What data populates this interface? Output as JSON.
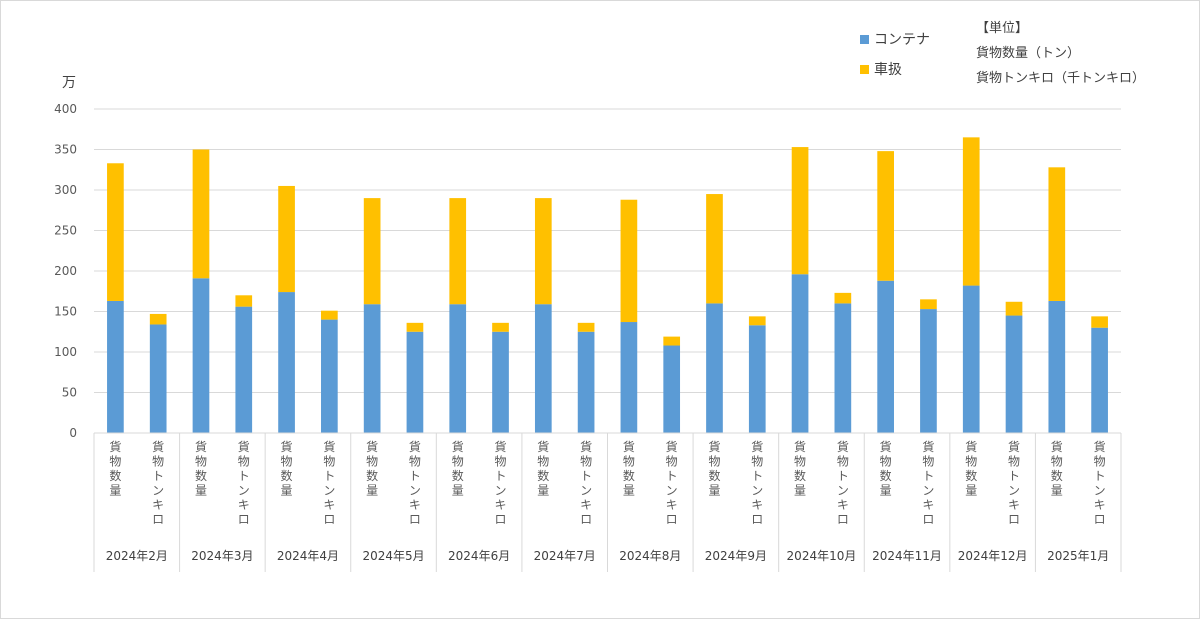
{
  "chart_data": {
    "type": "bar",
    "stacked": true,
    "ylabel": "万",
    "ylim": [
      0,
      400
    ],
    "yticks": [
      0,
      50,
      100,
      150,
      200,
      250,
      300,
      350,
      400
    ],
    "grid": true,
    "legend_position": "top-right",
    "groups": [
      "2024年2月",
      "2024年3月",
      "2024年4月",
      "2024年5月",
      "2024年6月",
      "2024年7月",
      "2024年8月",
      "2024年9月",
      "2024年10月",
      "2024年11月",
      "2024年12月",
      "2025年1月"
    ],
    "subcategories": [
      "貨物数量",
      "貨物トンキロ"
    ],
    "series": [
      {
        "name": "コンテナ",
        "color": "#5b9bd5",
        "values": [
          163,
          134,
          191,
          156,
          174,
          140,
          159,
          125,
          159,
          125,
          159,
          125,
          137,
          108,
          160,
          133,
          196,
          160,
          188,
          153,
          182,
          145,
          163,
          130
        ]
      },
      {
        "name": "車扱",
        "color": "#ffc000",
        "values": [
          170,
          13,
          159,
          14,
          131,
          11,
          131,
          11,
          131,
          11,
          131,
          11,
          151,
          11,
          135,
          11,
          157,
          13,
          160,
          12,
          183,
          17,
          165,
          14
        ]
      }
    ],
    "unit_note": {
      "title": "【単位】",
      "lines": [
        "貨物数量（トン）",
        "貨物トンキロ（千トンキロ）"
      ]
    }
  }
}
